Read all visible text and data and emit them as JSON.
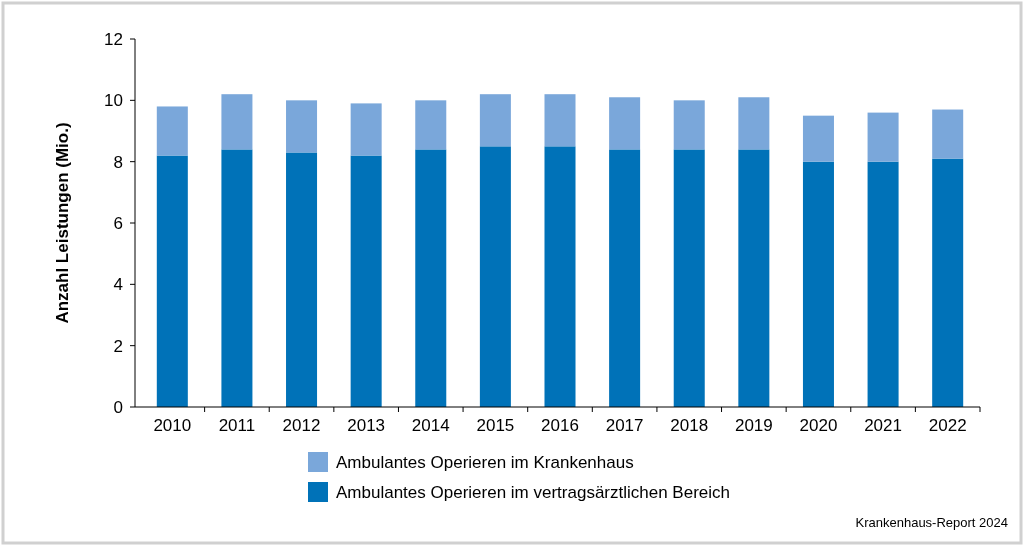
{
  "chart_data": {
    "type": "bar",
    "stacked": true,
    "ylabel": "Anzahl Leistungen (Mio.)",
    "categories": [
      "2010",
      "2011",
      "2012",
      "2013",
      "2014",
      "2015",
      "2016",
      "2017",
      "2018",
      "2019",
      "2020",
      "2021",
      "2022"
    ],
    "series": [
      {
        "name": "Ambulantes Operieren im vertragsärztlichen Bereich",
        "color": "#0072b8",
        "values": [
          8.2,
          8.4,
          8.3,
          8.2,
          8.4,
          8.5,
          8.5,
          8.4,
          8.4,
          8.4,
          8.0,
          8.0,
          8.1
        ]
      },
      {
        "name": "Ambulantes Operieren im Krankenhaus",
        "color": "#7aa7da",
        "values": [
          1.6,
          1.8,
          1.7,
          1.7,
          1.6,
          1.7,
          1.7,
          1.7,
          1.6,
          1.7,
          1.5,
          1.6,
          1.6
        ]
      }
    ],
    "ylim": [
      0,
      12
    ],
    "yticks": [
      0,
      2,
      4,
      6,
      8,
      10,
      12
    ],
    "legend": "bottom",
    "grid": false,
    "annotations": [
      "Krankenhaus-Report 2024"
    ]
  }
}
